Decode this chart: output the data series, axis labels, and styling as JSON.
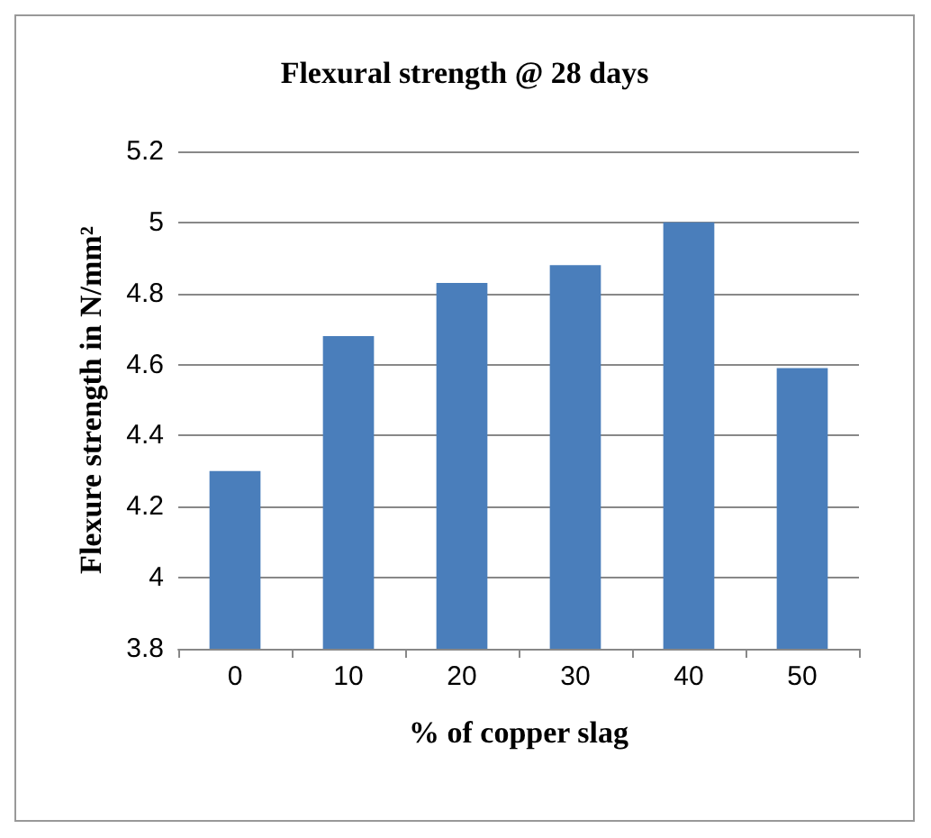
{
  "chart_data": {
    "type": "bar",
    "title": "Flexural strength @ 28 days",
    "xlabel": "% of copper slag",
    "ylabel": "Flexure strength in N/mm²",
    "categories": [
      "0",
      "10",
      "20",
      "30",
      "40",
      "50"
    ],
    "values": [
      4.3,
      4.68,
      4.83,
      4.88,
      5.0,
      4.59
    ],
    "color": "#4a7ebb",
    "ylim": [
      3.8,
      5.2
    ],
    "yticks": [
      3.8,
      4,
      4.2,
      4.4,
      4.6,
      4.8,
      5,
      5.2
    ],
    "grid": "y"
  }
}
